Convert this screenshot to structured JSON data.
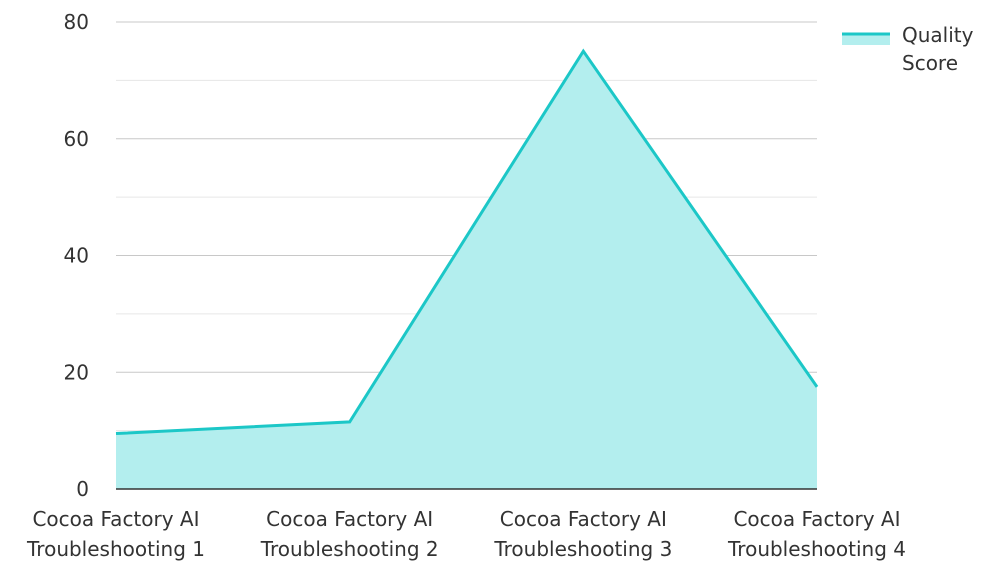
{
  "chart_data": {
    "type": "area",
    "categories": [
      [
        "Cocoa Factory AI",
        "Troubleshooting 1"
      ],
      [
        "Cocoa Factory AI",
        "Troubleshooting 2"
      ],
      [
        "Cocoa Factory AI",
        "Troubleshooting 3"
      ],
      [
        "Cocoa Factory AI",
        "Troubleshooting 4"
      ]
    ],
    "series": [
      {
        "name": "Quality Score",
        "values": [
          9.5,
          11.5,
          75,
          17.5
        ],
        "line_color": "#1cc7c7",
        "fill_color": "#b3eeee"
      }
    ],
    "legend": {
      "position": "top-right",
      "lines": [
        "Quality",
        "Score"
      ]
    },
    "ylim": [
      0,
      80
    ],
    "yticks": [
      "0",
      "20",
      "40",
      "60",
      "80"
    ],
    "grid": true,
    "title": "",
    "xlabel": "",
    "ylabel": ""
  }
}
